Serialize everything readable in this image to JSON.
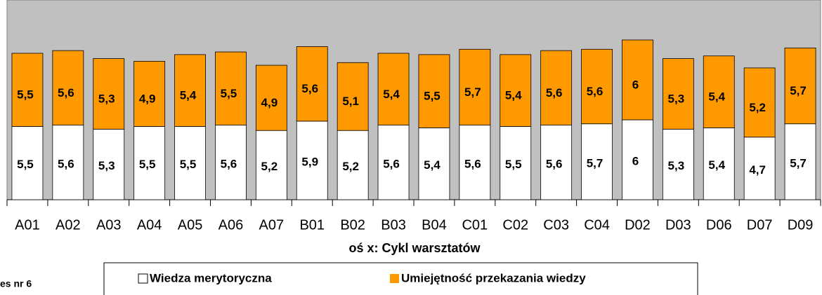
{
  "chart_data": {
    "type": "stacked_bar",
    "x_label": "oś x: Cykl warsztatów",
    "footnote": "es nr 6",
    "categories": [
      "A01",
      "A02",
      "A03",
      "A04",
      "A05",
      "A06",
      "A07",
      "B01",
      "B02",
      "B03",
      "B04",
      "C01",
      "C02",
      "C03",
      "C04",
      "D02",
      "D03",
      "D06",
      "D07",
      "D09"
    ],
    "series": [
      {
        "name": "Wiedza merytoryczna",
        "color": "#ffffff",
        "values": [
          5.5,
          5.6,
          5.3,
          5.5,
          5.5,
          5.6,
          5.2,
          5.9,
          5.2,
          5.6,
          5.4,
          5.6,
          5.5,
          5.6,
          5.7,
          6,
          5.3,
          5.4,
          4.7,
          5.7
        ],
        "value_labels": [
          "5,5",
          "5,6",
          "5,3",
          "5,5",
          "5,5",
          "5,6",
          "5,2",
          "5,9",
          "5,2",
          "5,6",
          "5,4",
          "5,6",
          "5,5",
          "5,6",
          "5,7",
          "6",
          "5,3",
          "5,4",
          "4,7",
          "5,7"
        ]
      },
      {
        "name": "Umiejętność przekazania wiedzy",
        "color": "#ff9900",
        "values": [
          5.5,
          5.6,
          5.3,
          4.9,
          5.4,
          5.5,
          4.9,
          5.6,
          5.1,
          5.4,
          5.5,
          5.7,
          5.4,
          5.6,
          5.6,
          6,
          5.3,
          5.4,
          5.2,
          5.7
        ],
        "value_labels": [
          "5,5",
          "5,6",
          "5,3",
          "4,9",
          "5,4",
          "5,5",
          "4,9",
          "5,6",
          "5,1",
          "5,4",
          "5,5",
          "5,7",
          "5,4",
          "5,6",
          "5,6",
          "6",
          "5,3",
          "5,4",
          "5,2",
          "5,7"
        ]
      }
    ],
    "ylim": [
      0,
      15
    ],
    "plot_background": "#c0c0c0"
  }
}
